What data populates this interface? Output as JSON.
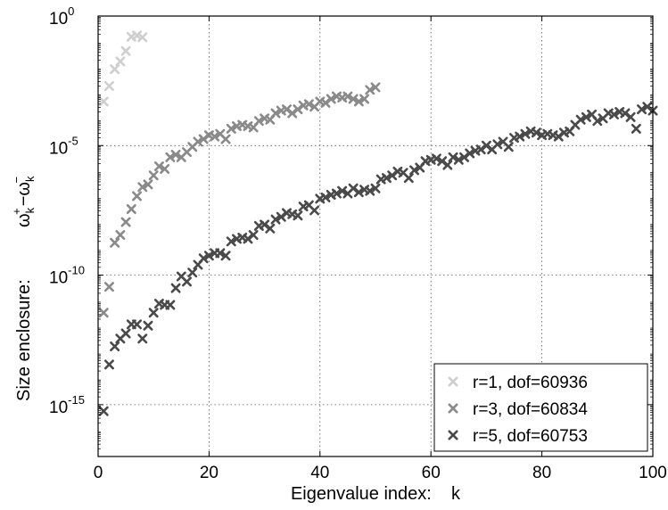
{
  "chart_data": {
    "type": "scatter",
    "title": "",
    "xlabel": "Eigenvalue index:    k",
    "ylabel": "Size enclosure:",
    "ylabel_math": {
      "base": "ω",
      "sub": "k",
      "sup_plus": "+",
      "sup_minus": "−",
      "minus": "−"
    },
    "xlim": [
      0,
      100
    ],
    "ylim": [
      1e-17,
      1
    ],
    "yscale": "log",
    "grid": true,
    "legend_position": "bottom-right",
    "x_ticks": [
      "0",
      "20",
      "40",
      "60",
      "80",
      "100"
    ],
    "y_ticks": [
      {
        "base": "10",
        "exp": "0",
        "value": 1
      },
      {
        "base": "10",
        "exp": "-5",
        "value": 1e-05
      },
      {
        "base": "10",
        "exp": "-10",
        "value": 1e-10
      },
      {
        "base": "10",
        "exp": "-15",
        "value": 1e-15
      }
    ],
    "series": [
      {
        "name": "r=1, dof=60936",
        "color": "#cfcfcf",
        "points": [
          [
            1,
            -3.3
          ],
          [
            2,
            -2.7
          ],
          [
            3,
            -2.05
          ],
          [
            4,
            -1.75
          ],
          [
            5,
            -1.35
          ],
          [
            6,
            -0.8
          ],
          [
            7,
            -0.75
          ],
          [
            8,
            -0.82
          ]
        ]
      },
      {
        "name": "r=3, dof=60834",
        "color": "#8a8a8a",
        "points": [
          [
            1,
            -11.45
          ],
          [
            2,
            -10.45
          ],
          [
            3,
            -8.75
          ],
          [
            4,
            -8.45
          ],
          [
            5,
            -7.95
          ],
          [
            6,
            -7.45
          ],
          [
            7,
            -6.95
          ],
          [
            8,
            -6.6
          ],
          [
            9,
            -6.5
          ],
          [
            10,
            -6.15
          ],
          [
            11,
            -5.8
          ],
          [
            12,
            -5.9
          ],
          [
            13,
            -5.45
          ],
          [
            14,
            -5.35
          ],
          [
            15,
            -5.45
          ],
          [
            16,
            -5.25
          ],
          [
            17,
            -5.05
          ],
          [
            18,
            -4.85
          ],
          [
            19,
            -4.75
          ],
          [
            20,
            -4.6
          ],
          [
            21,
            -4.65
          ],
          [
            22,
            -4.55
          ],
          [
            23,
            -4.75
          ],
          [
            24,
            -4.35
          ],
          [
            25,
            -4.25
          ],
          [
            26,
            -4.2
          ],
          [
            27,
            -4.25
          ],
          [
            28,
            -4.3
          ],
          [
            29,
            -4.05
          ],
          [
            30,
            -3.95
          ],
          [
            31,
            -4.0
          ],
          [
            32,
            -3.75
          ],
          [
            33,
            -3.65
          ],
          [
            34,
            -3.6
          ],
          [
            35,
            -3.75
          ],
          [
            36,
            -3.6
          ],
          [
            37,
            -3.45
          ],
          [
            38,
            -3.4
          ],
          [
            39,
            -3.5
          ],
          [
            40,
            -3.3
          ],
          [
            41,
            -3.35
          ],
          [
            42,
            -3.2
          ],
          [
            43,
            -3.1
          ],
          [
            44,
            -3.15
          ],
          [
            45,
            -3.1
          ],
          [
            46,
            -3.2
          ],
          [
            47,
            -3.3
          ],
          [
            48,
            -3.2
          ],
          [
            49,
            -2.85
          ],
          [
            50,
            -2.75
          ]
        ]
      },
      {
        "name": "r=5, dof=60753",
        "color": "#4a4a4a",
        "points": [
          [
            1,
            -15.25
          ],
          [
            2,
            -13.45
          ],
          [
            3,
            -12.75
          ],
          [
            4,
            -12.45
          ],
          [
            5,
            -12.25
          ],
          [
            6,
            -11.9
          ],
          [
            7,
            -11.9
          ],
          [
            8,
            -12.45
          ],
          [
            9,
            -11.95
          ],
          [
            10,
            -11.45
          ],
          [
            11,
            -11.1
          ],
          [
            12,
            -11.15
          ],
          [
            13,
            -11.15
          ],
          [
            14,
            -10.5
          ],
          [
            15,
            -10.05
          ],
          [
            16,
            -10.25
          ],
          [
            17,
            -9.9
          ],
          [
            18,
            -9.6
          ],
          [
            19,
            -9.35
          ],
          [
            20,
            -9.25
          ],
          [
            21,
            -9.15
          ],
          [
            22,
            -9.15
          ],
          [
            23,
            -9.25
          ],
          [
            24,
            -8.7
          ],
          [
            25,
            -8.6
          ],
          [
            26,
            -8.55
          ],
          [
            27,
            -8.6
          ],
          [
            28,
            -8.45
          ],
          [
            29,
            -8.1
          ],
          [
            30,
            -8.05
          ],
          [
            31,
            -8.2
          ],
          [
            32,
            -7.85
          ],
          [
            33,
            -7.75
          ],
          [
            34,
            -7.6
          ],
          [
            35,
            -7.65
          ],
          [
            36,
            -7.7
          ],
          [
            37,
            -7.35
          ],
          [
            38,
            -7.3
          ],
          [
            39,
            -7.5
          ],
          [
            40,
            -7.05
          ],
          [
            41,
            -7.0
          ],
          [
            42,
            -6.9
          ],
          [
            43,
            -6.85
          ],
          [
            44,
            -6.75
          ],
          [
            45,
            -6.85
          ],
          [
            46,
            -6.65
          ],
          [
            47,
            -6.8
          ],
          [
            48,
            -6.7
          ],
          [
            49,
            -6.75
          ],
          [
            50,
            -6.65
          ],
          [
            51,
            -6.3
          ],
          [
            52,
            -6.25
          ],
          [
            53,
            -6.15
          ],
          [
            54,
            -6.0
          ],
          [
            55,
            -6.05
          ],
          [
            56,
            -6.25
          ],
          [
            57,
            -5.95
          ],
          [
            58,
            -5.85
          ],
          [
            59,
            -5.6
          ],
          [
            60,
            -5.55
          ],
          [
            61,
            -5.5
          ],
          [
            62,
            -5.6
          ],
          [
            63,
            -5.75
          ],
          [
            64,
            -5.45
          ],
          [
            65,
            -5.55
          ],
          [
            66,
            -5.45
          ],
          [
            67,
            -5.3
          ],
          [
            68,
            -5.2
          ],
          [
            69,
            -5.15
          ],
          [
            70,
            -5.0
          ],
          [
            71,
            -5.15
          ],
          [
            72,
            -4.95
          ],
          [
            73,
            -4.85
          ],
          [
            74,
            -5.05
          ],
          [
            75,
            -4.7
          ],
          [
            76,
            -4.65
          ],
          [
            77,
            -4.55
          ],
          [
            78,
            -4.45
          ],
          [
            79,
            -4.5
          ],
          [
            80,
            -4.6
          ],
          [
            81,
            -4.55
          ],
          [
            82,
            -4.6
          ],
          [
            83,
            -4.65
          ],
          [
            84,
            -4.5
          ],
          [
            85,
            -4.45
          ],
          [
            86,
            -4.2
          ],
          [
            87,
            -4.0
          ],
          [
            88,
            -3.9
          ],
          [
            89,
            -3.8
          ],
          [
            90,
            -4.05
          ],
          [
            91,
            -3.95
          ],
          [
            92,
            -3.75
          ],
          [
            93,
            -3.8
          ],
          [
            94,
            -3.7
          ],
          [
            95,
            -3.75
          ],
          [
            96,
            -3.9
          ],
          [
            97,
            -4.35
          ],
          [
            98,
            -3.6
          ],
          [
            99,
            -3.5
          ],
          [
            100,
            -3.65
          ]
        ]
      }
    ]
  }
}
